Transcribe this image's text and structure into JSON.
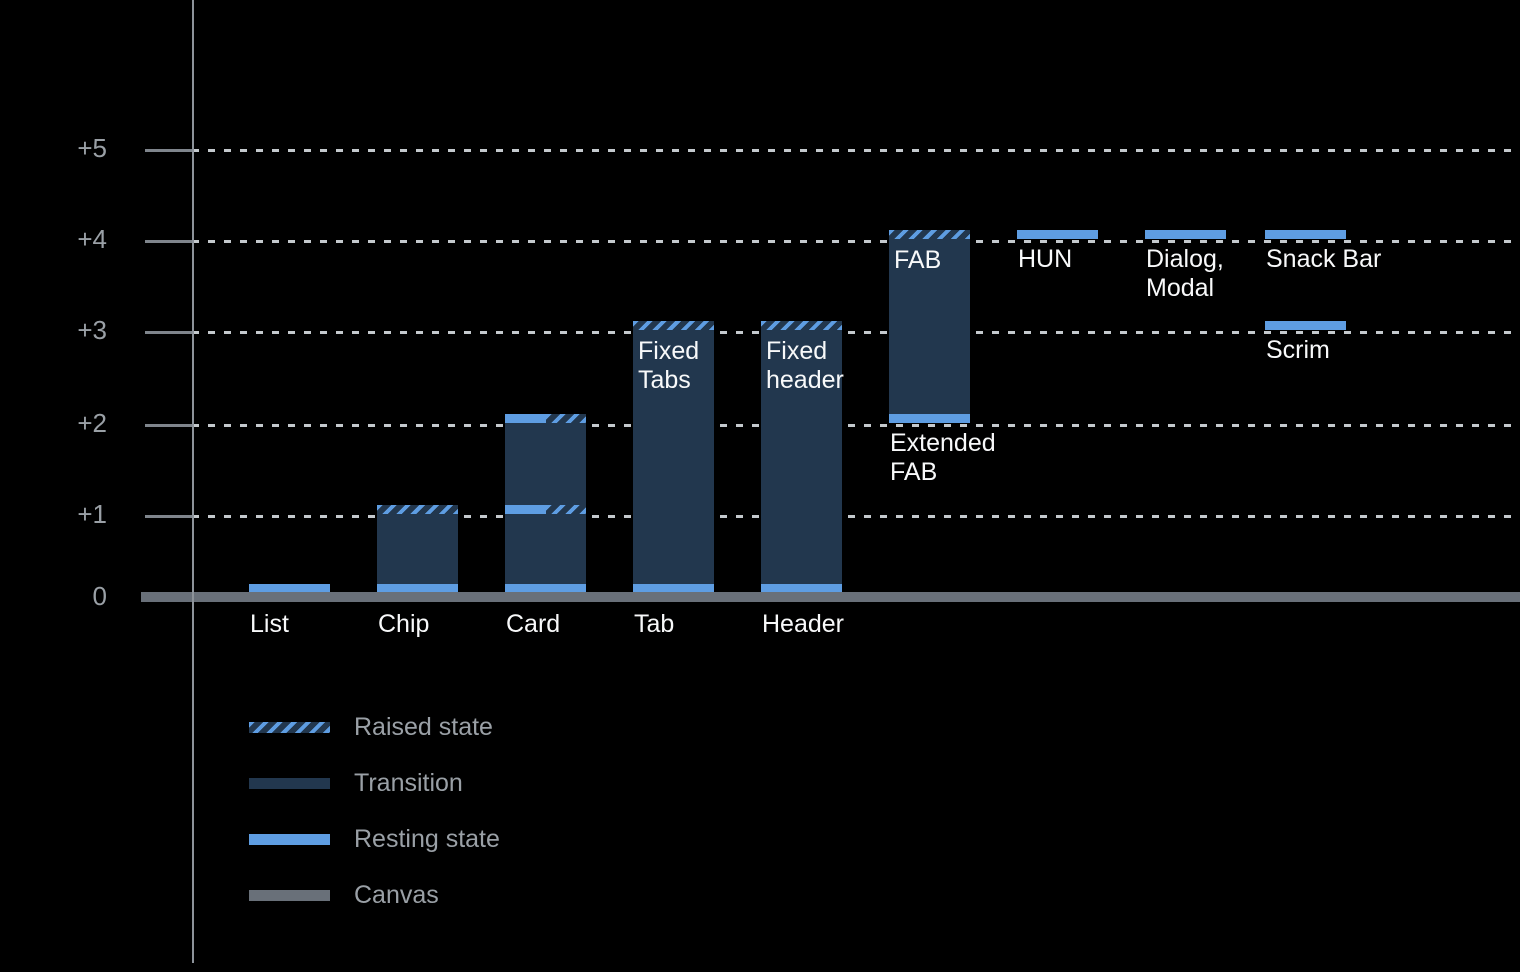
{
  "background_color": "#000000",
  "colors": {
    "resting": "#5e9de2",
    "transition": "#22374e",
    "raised_stripe": "#5e9de2",
    "canvas": "#697079",
    "axis_line": "#8d939a",
    "grid_dots": "#c4c9cd",
    "tick_text": "#9aa0a6",
    "bar_text": "#f8f9fa",
    "legend_text": "#9aa0a6"
  },
  "chart_data": {
    "type": "bar",
    "title": "",
    "xlabel": "",
    "ylabel": "",
    "ylim": [
      0,
      5
    ],
    "grid": "dotted horizontal lines at +1 through +5",
    "legend_position": "bottom-left",
    "y_axis": {
      "ticks": [
        {
          "label": "+5",
          "value": 5
        },
        {
          "label": "+4",
          "value": 4
        },
        {
          "label": "+3",
          "value": 3
        },
        {
          "label": "+2",
          "value": 2
        },
        {
          "label": "+1",
          "value": 1
        },
        {
          "label": "0",
          "value": 0
        }
      ]
    },
    "legend": [
      {
        "label": "Raised state",
        "style": "raised"
      },
      {
        "label": "Transition",
        "style": "transition"
      },
      {
        "label": "Resting state",
        "style": "resting"
      },
      {
        "label": "Canvas",
        "style": "canvas"
      }
    ],
    "components": [
      {
        "name": "list",
        "col": 0,
        "axis_label": "List",
        "segments": [
          {
            "style": "resting",
            "from": 0,
            "to": 0.1
          }
        ]
      },
      {
        "name": "chip",
        "col": 1,
        "axis_label": "Chip",
        "segments": [
          {
            "style": "resting",
            "from": 0,
            "to": 0.1
          },
          {
            "style": "transition",
            "from": 0.1,
            "to": 1
          },
          {
            "style": "raised",
            "from": 1,
            "to": 1.1
          }
        ]
      },
      {
        "name": "card",
        "col": 2,
        "axis_label": "Card",
        "segments": [
          {
            "style": "resting",
            "from": 0,
            "to": 0.1
          },
          {
            "style": "transition",
            "from": 0.1,
            "to": 1
          },
          {
            "style": "split",
            "from": 1,
            "to": 1.1
          },
          {
            "style": "transition",
            "from": 1.1,
            "to": 2
          },
          {
            "style": "split",
            "from": 2,
            "to": 2.1
          }
        ]
      },
      {
        "name": "tab",
        "col": 3,
        "axis_label": "Tab",
        "inner_label": "Fixed\nTabs",
        "segments": [
          {
            "style": "resting",
            "from": 0,
            "to": 0.1
          },
          {
            "style": "transition",
            "from": 0.1,
            "to": 3
          },
          {
            "style": "raised",
            "from": 3,
            "to": 3.1
          }
        ]
      },
      {
        "name": "header",
        "col": 4,
        "axis_label": "Header",
        "inner_label": "Fixed\nheader",
        "segments": [
          {
            "style": "resting",
            "from": 0,
            "to": 0.1
          },
          {
            "style": "transition",
            "from": 0.1,
            "to": 3
          },
          {
            "style": "raised",
            "from": 3,
            "to": 3.1
          }
        ]
      },
      {
        "name": "extended-fab",
        "col": 5,
        "inner_label": "FAB",
        "below_label": "Extended\nFAB",
        "segments": [
          {
            "style": "resting",
            "from": 2,
            "to": 2.1
          },
          {
            "style": "transition",
            "from": 2.1,
            "to": 4
          },
          {
            "style": "raised",
            "from": 4,
            "to": 4.1
          }
        ]
      },
      {
        "name": "hun",
        "col": 6,
        "below_label": "HUN",
        "segments": [
          {
            "style": "resting",
            "from": 4,
            "to": 4.1
          }
        ]
      },
      {
        "name": "dialog-modal",
        "col": 7,
        "below_label": "Dialog,\nModal",
        "segments": [
          {
            "style": "resting",
            "from": 4,
            "to": 4.1
          }
        ]
      },
      {
        "name": "snack-bar",
        "col": 8,
        "below_label": "Snack Bar",
        "segments": [
          {
            "style": "resting",
            "from": 4,
            "to": 4.1
          }
        ]
      },
      {
        "name": "scrim",
        "col": 8,
        "below_label": "Scrim",
        "segments": [
          {
            "style": "resting",
            "from": 3,
            "to": 3.1
          }
        ]
      }
    ]
  }
}
